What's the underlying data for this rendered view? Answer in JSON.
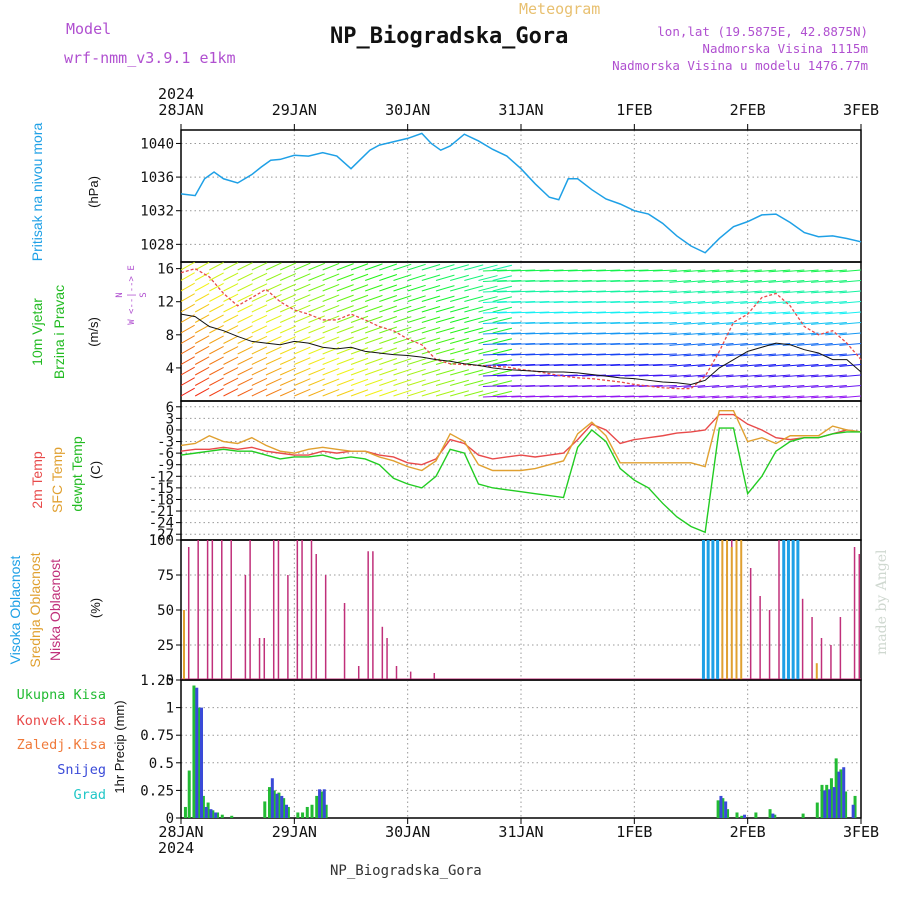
{
  "header": {
    "model_label": "Model",
    "model_name": "wrf-nmm_v3.9.1  e1km",
    "meteogram_label": "Meteogram",
    "station_title": "NP_Biogradska_Gora",
    "lonlat": "lon,lat (19.5875E, 42.8875N)",
    "elevation": "Nadmorska Visina 1115m",
    "model_elevation": "Nadmorska Visina u modelu 1476.77m",
    "year": "2024"
  },
  "footer": {
    "station": "NP_Biogradska_Gora"
  },
  "credit": "made by Angel",
  "colors": {
    "pressure": "#1ea0e6",
    "temp": "#e84a4a",
    "sfc_temp": "#e0a030",
    "dewpoint": "#22cc22",
    "high_cloud": "#1ea0e6",
    "mid_cloud": "#e0a030",
    "low_cloud": "#c0307a",
    "total_precip": "#22aa44",
    "snow": "#3a4ad8",
    "wind_axis": "#b050d0"
  },
  "x_axis": {
    "ticks": [
      "28JAN",
      "29JAN",
      "30JAN",
      "31JAN",
      "1FEB",
      "2FEB",
      "3FEB"
    ],
    "range_hours": [
      0,
      144
    ]
  },
  "chart_data": [
    {
      "type": "line",
      "panel": "pressure",
      "ylabel": "Pritisak na nivou mora",
      "unit": "(hPa)",
      "yticks": [
        "1040",
        "1036",
        "1032",
        "1028"
      ],
      "ylim": [
        1025.9,
        1041.6
      ],
      "x_hours": [
        0,
        3,
        5,
        7,
        9,
        12,
        15,
        17,
        19,
        21,
        24,
        27,
        30,
        33,
        36,
        38,
        40,
        42,
        45,
        48,
        51,
        53,
        55,
        57,
        60,
        63,
        66,
        69,
        72,
        75,
        78,
        80,
        82,
        84,
        87,
        90,
        93,
        96,
        99,
        102,
        105,
        108,
        111,
        114,
        117,
        120,
        123,
        126,
        129,
        132,
        135,
        138,
        141,
        144
      ],
      "series": [
        {
          "values": [
            1034.0,
            1033.8,
            1035.8,
            1036.6,
            1035.8,
            1035.3,
            1036.3,
            1037.2,
            1038.0,
            1038.1,
            1038.6,
            1038.5,
            1038.9,
            1038.5,
            1037.0,
            1038.1,
            1039.2,
            1039.8,
            1040.2,
            1040.6,
            1041.2,
            1040.0,
            1039.2,
            1039.7,
            1041.1,
            1040.3,
            1039.3,
            1038.5,
            1037.0,
            1035.2,
            1033.6,
            1033.3,
            1035.8,
            1035.8,
            1034.5,
            1033.4,
            1032.8,
            1032.0,
            1031.6,
            1030.5,
            1029.0,
            1027.8,
            1027.0,
            1028.7,
            1030.1,
            1030.7,
            1031.5,
            1031.6,
            1030.6,
            1029.4,
            1028.9,
            1029.0,
            1028.7,
            1028.3
          ]
        }
      ]
    },
    {
      "type": "line",
      "panel": "wind",
      "ylabel": "10m Vjetar Brzina i Pravac",
      "unit": "(m/s)",
      "compass_legend": [
        "N",
        "W <--|--> E",
        "S"
      ],
      "yticks": [
        "16",
        "12",
        "8",
        "4"
      ],
      "ylim": [
        0,
        16.8
      ],
      "x_hours": [
        0,
        3,
        6,
        9,
        12,
        15,
        18,
        21,
        24,
        27,
        30,
        33,
        36,
        39,
        42,
        45,
        48,
        51,
        54,
        57,
        60,
        63,
        66,
        69,
        72,
        75,
        78,
        81,
        84,
        87,
        90,
        93,
        96,
        99,
        102,
        105,
        108,
        111,
        114,
        117,
        120,
        123,
        126,
        129,
        132,
        135,
        138,
        141,
        144
      ],
      "series": [
        {
          "name": "speed",
          "values": [
            10.5,
            10.2,
            9.0,
            8.5,
            7.8,
            7.2,
            7.0,
            6.8,
            7.2,
            7.0,
            6.5,
            6.3,
            6.5,
            6.0,
            5.8,
            5.6,
            5.5,
            5.3,
            5.0,
            4.8,
            4.5,
            4.3,
            4.0,
            3.8,
            3.7,
            3.6,
            3.5,
            3.5,
            3.4,
            3.2,
            3.0,
            2.8,
            2.7,
            2.5,
            2.3,
            2.2,
            2.0,
            2.5,
            4.0,
            5.0,
            6.0,
            6.5,
            7.0,
            6.8,
            6.2,
            5.8,
            5.0,
            5.0,
            3.5
          ]
        },
        {
          "name": "gust",
          "values": [
            15.5,
            16.0,
            15.0,
            13.0,
            11.5,
            12.5,
            13.5,
            12.0,
            11.0,
            10.5,
            9.8,
            9.8,
            10.5,
            9.8,
            9.0,
            8.5,
            7.5,
            6.8,
            5.0,
            4.5,
            4.4,
            4.3,
            4.2,
            4.1,
            3.8,
            3.6,
            3.3,
            3.0,
            2.8,
            2.7,
            2.5,
            2.3,
            2.0,
            1.8,
            1.6,
            1.5,
            1.5,
            3.0,
            6.0,
            9.5,
            10.5,
            12.5,
            13.0,
            11.5,
            9.0,
            8.0,
            8.5,
            7.0,
            5.0
          ]
        }
      ]
    },
    {
      "type": "line",
      "panel": "temperature",
      "ylabel": [
        "2m Temp",
        "SFC Temp",
        "dewpt Temp"
      ],
      "unit": "(C)",
      "yticks": [
        "6",
        "3",
        "0",
        "-3",
        "-6",
        "-9",
        "-12",
        "-15",
        "-18",
        "-21",
        "-24",
        "-27"
      ],
      "ylim": [
        -28.5,
        7.5
      ],
      "x_hours": [
        0,
        3,
        6,
        9,
        12,
        15,
        18,
        21,
        24,
        27,
        30,
        33,
        36,
        39,
        42,
        45,
        48,
        51,
        54,
        57,
        60,
        63,
        66,
        69,
        72,
        75,
        78,
        81,
        84,
        87,
        90,
        93,
        96,
        99,
        102,
        105,
        108,
        111,
        114,
        117,
        120,
        123,
        126,
        129,
        132,
        135,
        138,
        141,
        144
      ],
      "series": [
        {
          "name": "2m Temp",
          "values": [
            -5.5,
            -5.0,
            -5.0,
            -4.5,
            -5.0,
            -4.5,
            -5.5,
            -6.0,
            -6.5,
            -6.5,
            -5.5,
            -6.0,
            -5.5,
            -5.5,
            -6.5,
            -7.0,
            -8.5,
            -9.0,
            -7.5,
            -2.5,
            -3.5,
            -6.5,
            -7.5,
            -7.0,
            -6.5,
            -7.0,
            -6.5,
            -6.0,
            -2.5,
            1.5,
            0.0,
            -3.5,
            -2.5,
            -2.0,
            -1.5,
            -0.8,
            -0.5,
            0.0,
            4.0,
            4.0,
            1.5,
            0.0,
            -2.0,
            -2.5,
            -2.0,
            -2.0,
            -1.0,
            0.0,
            -0.5
          ]
        },
        {
          "name": "SFC Temp",
          "values": [
            -4.0,
            -3.5,
            -1.5,
            -3.0,
            -3.5,
            -2.0,
            -4.0,
            -5.5,
            -6.0,
            -5.0,
            -4.5,
            -5.0,
            -5.5,
            -5.5,
            -7.0,
            -8.0,
            -9.5,
            -10.5,
            -8.0,
            -1.0,
            -3.0,
            -9.0,
            -10.5,
            -10.5,
            -10.5,
            -10.0,
            -9.0,
            -8.0,
            -1.0,
            2.0,
            -1.5,
            -8.5,
            -8.5,
            -8.5,
            -8.5,
            -8.5,
            -8.5,
            -9.5,
            5.0,
            5.0,
            -3.0,
            -2.0,
            -3.5,
            -1.5,
            -1.5,
            -1.5,
            1.0,
            0.0,
            -0.5
          ]
        },
        {
          "name": "dewpt Temp",
          "values": [
            -6.5,
            -6.0,
            -5.5,
            -5.0,
            -5.5,
            -5.5,
            -6.5,
            -7.5,
            -7.0,
            -7.0,
            -6.5,
            -7.5,
            -7.0,
            -7.5,
            -9.0,
            -12.5,
            -14.0,
            -15.0,
            -12.0,
            -5.0,
            -6.0,
            -14.0,
            -15.0,
            -15.5,
            -16.0,
            -16.5,
            -17.0,
            -17.5,
            -4.5,
            0.0,
            -3.0,
            -10.0,
            -13.0,
            -15.0,
            -19.0,
            -22.5,
            -25.0,
            -26.5,
            0.5,
            0.5,
            -16.5,
            -12.0,
            -5.5,
            -3.0,
            -2.0,
            -2.0,
            -1.0,
            -0.5,
            -0.5
          ]
        }
      ]
    },
    {
      "type": "bar",
      "panel": "cloud",
      "ylabel": [
        "Visoka Oblacnost",
        "Srednja Oblacnost",
        "Niska Oblacnost"
      ],
      "unit": "(%)",
      "yticks": [
        "100",
        "75",
        "50",
        "25",
        "0"
      ],
      "ylim": [
        0,
        100
      ],
      "series": [
        {
          "name": "Niska Oblacnost",
          "points": [
            [
              1,
              95
            ],
            [
              3,
              100
            ],
            [
              5,
              100
            ],
            [
              6,
              100
            ],
            [
              8,
              100
            ],
            [
              10,
              100
            ],
            [
              13,
              75
            ],
            [
              14,
              100
            ],
            [
              16,
              30
            ],
            [
              17,
              30
            ],
            [
              19,
              100
            ],
            [
              20,
              100
            ],
            [
              22,
              75
            ],
            [
              24,
              100
            ],
            [
              25,
              100
            ],
            [
              27,
              100
            ],
            [
              28,
              90
            ],
            [
              30,
              75
            ],
            [
              34,
              55
            ],
            [
              37,
              10
            ],
            [
              39,
              92
            ],
            [
              40,
              92
            ],
            [
              42,
              38
            ],
            [
              43,
              30
            ],
            [
              45,
              10
            ],
            [
              48,
              6
            ],
            [
              53,
              5
            ],
            [
              56,
              1
            ],
            [
              61,
              1
            ],
            [
              71,
              1
            ],
            [
              84,
              1
            ],
            [
              111,
              100
            ],
            [
              114,
              100
            ],
            [
              115,
              90
            ],
            [
              116,
              100
            ],
            [
              117,
              80
            ],
            [
              120,
              80
            ],
            [
              122,
              60
            ],
            [
              124,
              50
            ],
            [
              126,
              100
            ],
            [
              127,
              100
            ],
            [
              129,
              100
            ],
            [
              131,
              58
            ],
            [
              133,
              45
            ],
            [
              135,
              30
            ],
            [
              137,
              25
            ],
            [
              139,
              45
            ],
            [
              142,
              95
            ],
            [
              143,
              90
            ]
          ]
        },
        {
          "name": "Srednja Oblacnost",
          "points": [
            [
              0,
              50
            ],
            [
              111,
              100
            ],
            [
              112,
              100
            ],
            [
              113,
              95
            ],
            [
              114,
              100
            ],
            [
              115,
              100
            ],
            [
              116,
              95
            ],
            [
              117,
              100
            ],
            [
              118,
              100
            ],
            [
              128,
              100
            ],
            [
              129,
              100
            ],
            [
              134,
              12
            ]
          ]
        },
        {
          "name": "Visoka Oblacnost",
          "points": [
            [
              110,
              100
            ],
            [
              111,
              100
            ],
            [
              112,
              100
            ],
            [
              113,
              100
            ],
            [
              127,
              100
            ],
            [
              128,
              100
            ],
            [
              129,
              100
            ],
            [
              130,
              100
            ]
          ]
        }
      ]
    },
    {
      "type": "bar",
      "panel": "precip",
      "ylabel": "1hr Precip (mm)",
      "legend": [
        "Ukupna Kisa",
        "Konvek.Kisa",
        "Zaledj.Kisa",
        "Snijeg",
        "Grad"
      ],
      "legend_colors": [
        "#22bb33",
        "#e84a4a",
        "#f07a3a",
        "#3a4ad8",
        "#22c8c8"
      ],
      "yticks": [
        "1.25",
        "1",
        "0.75",
        "0.5",
        "0.25",
        "0"
      ],
      "ylim": [
        0,
        1.25
      ],
      "series": [
        {
          "name": "Ukupna Kisa",
          "points": [
            [
              0.2,
              0.1
            ],
            [
              1.0,
              0.43
            ],
            [
              2.0,
              1.2
            ],
            [
              3.0,
              1.0
            ],
            [
              4.0,
              0.2
            ],
            [
              5.0,
              0.14
            ],
            [
              6.0,
              0.07
            ],
            [
              7.0,
              0.05
            ],
            [
              8.0,
              0.03
            ],
            [
              10.0,
              0.02
            ],
            [
              17.0,
              0.15
            ],
            [
              18.0,
              0.28
            ],
            [
              19.0,
              0.25
            ],
            [
              20.0,
              0.23
            ],
            [
              21.0,
              0.18
            ],
            [
              22.0,
              0.1
            ],
            [
              24.0,
              0.05
            ],
            [
              25.0,
              0.05
            ],
            [
              26.0,
              0.1
            ],
            [
              27.0,
              0.12
            ],
            [
              28.0,
              0.2
            ],
            [
              29.0,
              0.24
            ],
            [
              30.0,
              0.12
            ],
            [
              113.0,
              0.16
            ],
            [
              114.0,
              0.18
            ],
            [
              115.0,
              0.08
            ],
            [
              117.0,
              0.05
            ],
            [
              118.0,
              0.02
            ],
            [
              121.0,
              0.05
            ],
            [
              124.0,
              0.08
            ],
            [
              125.0,
              0.03
            ],
            [
              131.0,
              0.04
            ],
            [
              134.0,
              0.14
            ],
            [
              135.0,
              0.3
            ],
            [
              136.0,
              0.3
            ],
            [
              137.0,
              0.36
            ],
            [
              138.0,
              0.54
            ],
            [
              139.0,
              0.44
            ],
            [
              140.0,
              0.24
            ],
            [
              142.0,
              0.2
            ]
          ]
        },
        {
          "name": "Snijeg",
          "points": [
            [
              2.6,
              1.18
            ],
            [
              3.6,
              1.0
            ],
            [
              4.6,
              0.1
            ],
            [
              5.6,
              0.08
            ],
            [
              6.6,
              0.05
            ],
            [
              18.6,
              0.36
            ],
            [
              19.6,
              0.22
            ],
            [
              20.6,
              0.2
            ],
            [
              21.6,
              0.12
            ],
            [
              28.6,
              0.26
            ],
            [
              29.6,
              0.26
            ],
            [
              113.6,
              0.2
            ],
            [
              114.6,
              0.15
            ],
            [
              118.6,
              0.03
            ],
            [
              124.6,
              0.04
            ],
            [
              135.6,
              0.25
            ],
            [
              136.6,
              0.26
            ],
            [
              137.6,
              0.28
            ],
            [
              138.6,
              0.42
            ],
            [
              139.6,
              0.46
            ],
            [
              141.6,
              0.12
            ]
          ]
        }
      ]
    }
  ]
}
